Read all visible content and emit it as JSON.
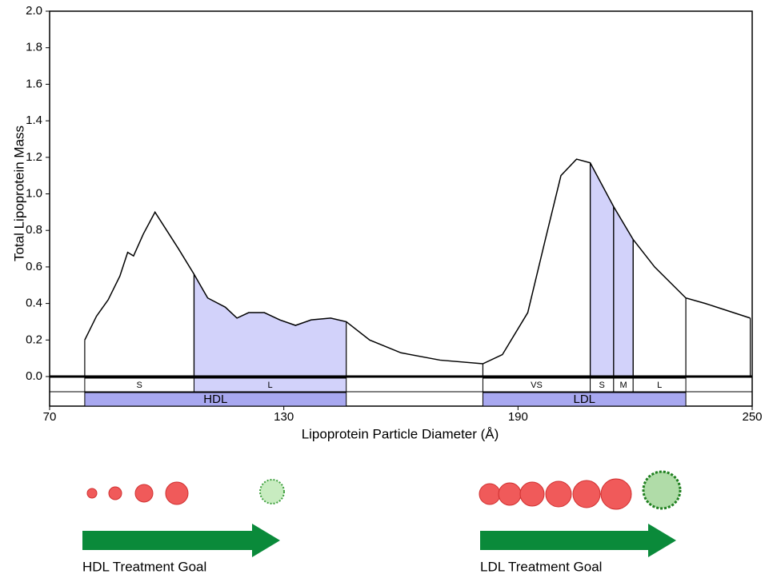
{
  "chart_data": {
    "type": "line",
    "ylabel": "Total Lipoprotein Mass",
    "xlabel": "Lipoprotein Particle Diameter (Å)",
    "xlim": [
      70,
      250
    ],
    "xticks": [
      70,
      130,
      190,
      250
    ],
    "ylim": [
      0,
      2.0
    ],
    "yticks": [
      {
        "value": 0,
        "label": "0.0"
      },
      {
        "value": 0.2,
        "label": "0.2"
      },
      {
        "value": 0.4,
        "label": "0.4"
      },
      {
        "value": 0.6,
        "label": "0.6"
      },
      {
        "value": 0.8,
        "label": "0.8"
      },
      {
        "value": 1.0,
        "label": "1.0"
      },
      {
        "value": 1.2,
        "label": "1.2"
      },
      {
        "value": 1.4,
        "label": "1.4"
      },
      {
        "value": 1.6,
        "label": "1.6"
      },
      {
        "value": 1.8,
        "label": "1.8"
      },
      {
        "value": 2.0,
        "label": "2.0"
      }
    ],
    "color": "#000000",
    "x": [
      79,
      82,
      85,
      88,
      90,
      91.5,
      94,
      97,
      100,
      103,
      107,
      110.5,
      115,
      118,
      121,
      125,
      129,
      133,
      137,
      142,
      146,
      152,
      160,
      170,
      181,
      186,
      192.5,
      197,
      201,
      205,
      208.5,
      214.5,
      219.5,
      225,
      233,
      238,
      249.5
    ],
    "values": [
      0.2,
      0.33,
      0.42,
      0.55,
      0.68,
      0.66,
      0.78,
      0.9,
      0.8,
      0.7,
      0.56,
      0.43,
      0.38,
      0.32,
      0.35,
      0.35,
      0.31,
      0.28,
      0.31,
      0.32,
      0.3,
      0.2,
      0.13,
      0.09,
      0.07,
      0.12,
      0.35,
      0.75,
      1.1,
      1.19,
      1.17,
      0.93,
      0.75,
      0.6,
      0.43,
      0.4,
      0.32
    ],
    "subclasses": [
      {
        "label": "S",
        "start": 79,
        "end": 107,
        "shaded": false
      },
      {
        "label": "L",
        "start": 107,
        "end": 146,
        "shaded": true
      },
      {
        "label": "VS",
        "start": 181,
        "end": 208.5,
        "shaded": false
      },
      {
        "label": "S",
        "start": 208.5,
        "end": 214.5,
        "shaded": true
      },
      {
        "label": "M",
        "start": 214.5,
        "end": 219.5,
        "shaded": true
      },
      {
        "label": "L",
        "start": 219.5,
        "end": 233,
        "shaded": false
      }
    ],
    "classes": [
      {
        "label": "HDL",
        "start": 79,
        "end": 146
      },
      {
        "label": "LDL",
        "start": 181,
        "end": 233
      }
    ],
    "shade_color": "#d2d2fa",
    "class_color": "#a8a8f0",
    "captions": [
      "HDL Treatment Goal",
      "LDL Treatment Goal"
    ]
  }
}
